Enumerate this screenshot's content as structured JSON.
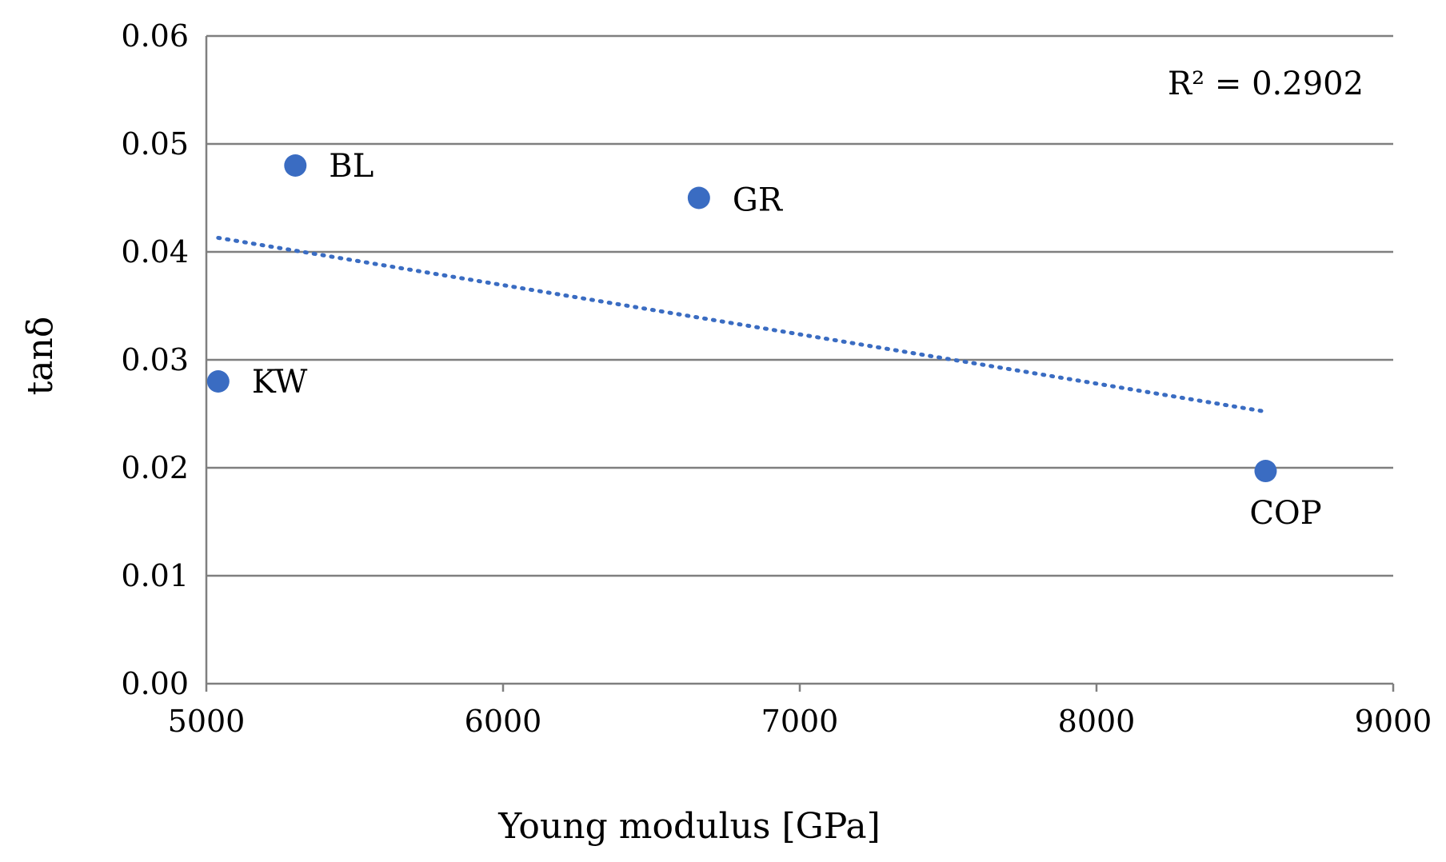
{
  "chart_data": {
    "type": "scatter",
    "title": "",
    "xlabel": "Young modulus [GPa]",
    "ylabel": "tanδ",
    "xlim": [
      5000,
      9000
    ],
    "ylim": [
      0,
      0.06
    ],
    "xticks": [
      5000,
      6000,
      7000,
      8000,
      9000
    ],
    "xtick_labels": [
      "5000",
      "6000",
      "7000",
      "8000",
      "9000"
    ],
    "yticks": [
      0,
      0.01,
      0.02,
      0.03,
      0.04,
      0.05,
      0.06
    ],
    "ytick_labels": [
      "0.00",
      "0.01",
      "0.02",
      "0.03",
      "0.04",
      "0.05",
      "0.06"
    ],
    "grid": "horizontal",
    "legend": "none",
    "series": [
      {
        "name": "samples",
        "points": [
          {
            "label": "BL",
            "x": 5300,
            "y": 0.048
          },
          {
            "label": "GR",
            "x": 6660,
            "y": 0.045
          },
          {
            "label": "KW",
            "x": 5040,
            "y": 0.028
          },
          {
            "label": "COP",
            "x": 8570,
            "y": 0.0197
          }
        ]
      }
    ],
    "trendline": {
      "type": "linear",
      "style": "dotted",
      "x_start": 5040,
      "y_start": 0.0413,
      "x_end": 8570,
      "y_end": 0.0252
    },
    "annotation": "R² = 0.2902",
    "colors": {
      "marker": "#3a6cc2",
      "trendline": "#3a6cc2",
      "grid": "#7f7f7f",
      "axis": "#7f7f7f"
    }
  }
}
